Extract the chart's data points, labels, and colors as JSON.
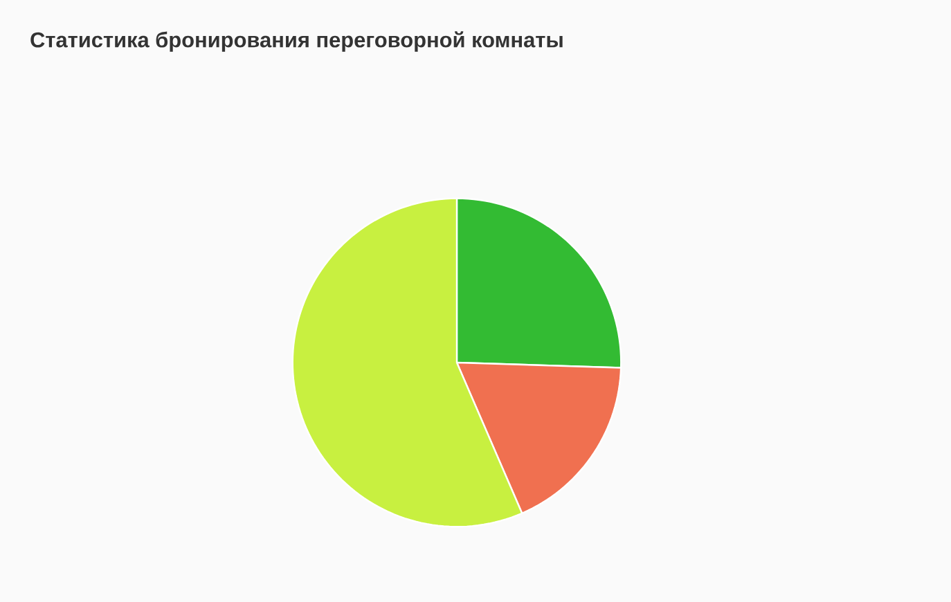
{
  "chart_data": {
    "type": "pie",
    "title": "Статистика бронирования переговорной комнаты",
    "categories": [
      null,
      null,
      null
    ],
    "values": [
      25.5,
      18,
      56.5
    ],
    "colors": [
      "#33bb33",
      "#f07050",
      "#c8f040"
    ]
  }
}
